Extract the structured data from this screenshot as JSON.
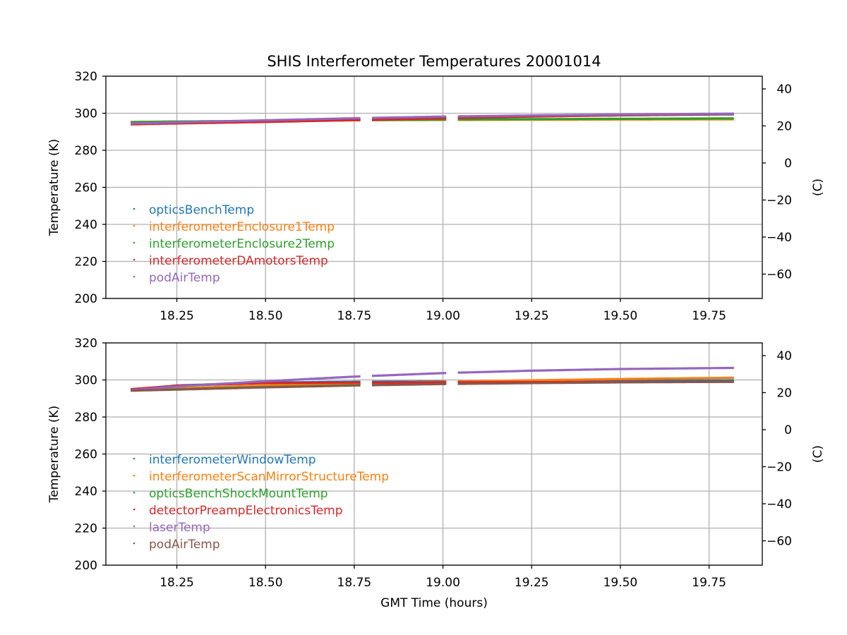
{
  "chart_data": {
    "title": "SHIS Interferometer Temperatures 20001014",
    "xlabel": "GMT Time (hours)",
    "xlim": [
      18.05,
      19.9
    ],
    "x_ticks": [
      18.25,
      18.5,
      18.75,
      19.0,
      19.25,
      19.5,
      19.75
    ],
    "x_tick_labels": [
      "18.25",
      "18.50",
      "18.75",
      "19.00",
      "19.25",
      "19.50",
      "19.75"
    ],
    "data_gaps": [
      [
        18.77,
        18.795
      ],
      [
        19.01,
        19.04
      ]
    ],
    "panels": [
      {
        "type": "scatter",
        "ylabel": "Temperature (K)",
        "ylim": [
          200,
          320
        ],
        "y_ticks": [
          200,
          220,
          240,
          260,
          280,
          300,
          320
        ],
        "y_tick_labels": [
          "200",
          "220",
          "240",
          "260",
          "280",
          "300",
          "320"
        ],
        "y2label": "(C)",
        "y2_ticks": [
          40,
          20,
          0,
          -20,
          -40,
          -60
        ],
        "y2_tick_labels": [
          "40",
          "20",
          "0",
          "−20",
          "−40",
          "−60"
        ],
        "grid": true,
        "legend_position": "lower-left",
        "series": [
          {
            "name": "opticsBenchTemp",
            "color": "#1f77b4",
            "x": [
              18.12,
              18.25,
              18.5,
              18.75,
              19.0,
              19.25,
              19.5,
              19.82
            ],
            "y": [
              294.5,
              295.0,
              295.8,
              296.8,
              297.6,
              298.3,
              298.9,
              299.4
            ]
          },
          {
            "name": "interferometerEnclosure1Temp",
            "color": "#ff7f0e",
            "x": [
              18.12,
              18.25,
              18.5,
              18.75,
              19.0,
              19.25,
              19.5,
              19.82
            ],
            "y": [
              295.3,
              295.5,
              295.9,
              296.2,
              296.4,
              296.5,
              296.6,
              296.7
            ]
          },
          {
            "name": "interferometerEnclosure2Temp",
            "color": "#2ca02c",
            "x": [
              18.12,
              18.25,
              18.5,
              18.75,
              19.0,
              19.25,
              19.5,
              19.82
            ],
            "y": [
              295.2,
              295.5,
              295.9,
              296.3,
              296.6,
              296.8,
              297.0,
              297.2
            ]
          },
          {
            "name": "interferometerDAmotorsTemp",
            "color": "#d62728",
            "x": [
              18.12,
              18.25,
              18.5,
              18.75,
              19.0,
              19.25,
              19.5,
              19.82
            ],
            "y": [
              294.0,
              294.5,
              295.3,
              296.3,
              297.3,
              298.2,
              298.9,
              299.6
            ]
          },
          {
            "name": "podAirTemp",
            "color": "#9467bd",
            "x": [
              18.12,
              18.25,
              18.5,
              18.75,
              19.0,
              19.25,
              19.5,
              19.82
            ],
            "y": [
              294.5,
              295.1,
              296.2,
              297.3,
              298.2,
              298.8,
              299.3,
              299.8
            ]
          }
        ]
      },
      {
        "type": "scatter",
        "ylabel": "Temperature (K)",
        "ylim": [
          200,
          320
        ],
        "y_ticks": [
          200,
          220,
          240,
          260,
          280,
          300,
          320
        ],
        "y_tick_labels": [
          "200",
          "220",
          "240",
          "260",
          "280",
          "300",
          "320"
        ],
        "y2label": "(C)",
        "y2_ticks": [
          40,
          20,
          0,
          -20,
          -40,
          -60
        ],
        "y2_tick_labels": [
          "40",
          "20",
          "0",
          "−20",
          "−40",
          "−60"
        ],
        "grid": true,
        "legend_position": "lower-left",
        "series": [
          {
            "name": "interferometerWindowTemp",
            "color": "#1f77b4",
            "x": [
              18.12,
              18.25,
              18.5,
              18.75,
              19.0,
              19.25,
              19.5,
              19.82
            ],
            "y": [
              294.7,
              297.0,
              298.6,
              299.0,
              299.2,
              299.4,
              299.6,
              299.8
            ]
          },
          {
            "name": "interferometerScanMirrorStructureTemp",
            "color": "#ff7f0e",
            "x": [
              18.12,
              18.25,
              18.5,
              18.75,
              19.0,
              19.25,
              19.5,
              19.82
            ],
            "y": [
              294.5,
              295.5,
              297.0,
              298.2,
              299.0,
              299.8,
              300.5,
              301.2
            ]
          },
          {
            "name": "opticsBenchShockMountTemp",
            "color": "#2ca02c",
            "x": [
              18.12,
              18.25,
              18.5,
              18.75,
              19.0,
              19.25,
              19.5,
              19.82
            ],
            "y": [
              294.3,
              295.0,
              296.2,
              297.2,
              297.9,
              298.4,
              298.8,
              299.1
            ]
          },
          {
            "name": "detectorPreampElectronicsTemp",
            "color": "#d62728",
            "x": [
              18.12,
              18.25,
              18.5,
              18.75,
              19.0,
              19.25,
              19.5,
              19.82
            ],
            "y": [
              295.0,
              296.9,
              298.3,
              298.6,
              298.7,
              298.8,
              298.9,
              299.0
            ]
          },
          {
            "name": "laserTemp",
            "color": "#9467bd",
            "x": [
              18.12,
              18.25,
              18.5,
              18.75,
              19.0,
              19.25,
              19.5,
              19.82
            ],
            "y": [
              294.5,
              296.5,
              299.3,
              301.8,
              303.7,
              305.0,
              305.9,
              306.5
            ]
          },
          {
            "name": "podAirTemp",
            "color": "#8c564b",
            "x": [
              18.12,
              18.25,
              18.5,
              18.75,
              19.0,
              19.25,
              19.5,
              19.82
            ],
            "y": [
              294.2,
              294.8,
              296.0,
              297.0,
              297.8,
              298.3,
              298.7,
              299.0
            ]
          }
        ]
      }
    ]
  }
}
